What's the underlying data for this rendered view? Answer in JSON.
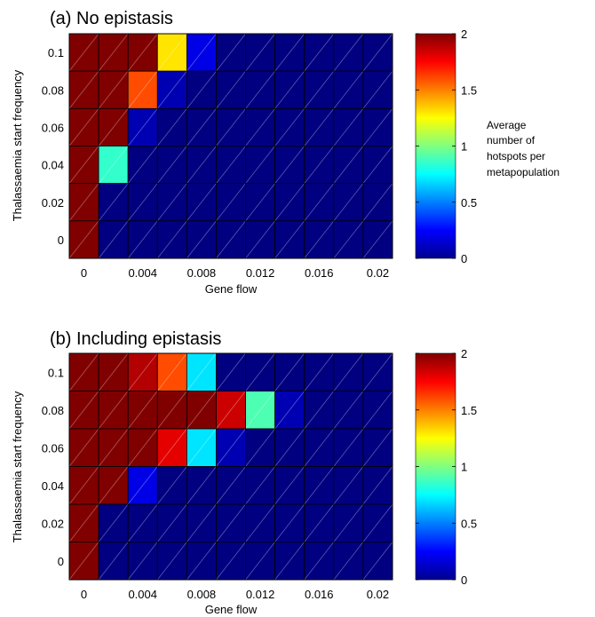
{
  "colorbar_label": [
    "Average",
    "number of",
    "hotspots per",
    "metapopulation"
  ],
  "chart_data": [
    {
      "type": "heatmap",
      "title": "(a) No epistasis",
      "xlabel": "Gene flow",
      "ylabel": "Thalassaemia start frequency",
      "x_ticks": [
        "0",
        "0.004",
        "0.008",
        "0.012",
        "0.016",
        "0.02"
      ],
      "y_ticks": [
        "0.1",
        "0.08",
        "0.06",
        "0.04",
        "0.02",
        "0"
      ],
      "rows_top_to_bottom": [
        0.1,
        0.08,
        0.06,
        0.04,
        0.02,
        0
      ],
      "columns": [
        0,
        0.002,
        0.004,
        0.006,
        0.008,
        0.01,
        0.012,
        0.014,
        0.016,
        0.018,
        0.02
      ],
      "values": [
        [
          2,
          2,
          2,
          1.3,
          0.2,
          0,
          0,
          0,
          0,
          0,
          0
        ],
        [
          2,
          2,
          1.6,
          0.1,
          0,
          0,
          0,
          0,
          0,
          0,
          0
        ],
        [
          2,
          2,
          0.1,
          0,
          0,
          0,
          0,
          0,
          0,
          0,
          0
        ],
        [
          2,
          0.85,
          0,
          0,
          0,
          0,
          0,
          0,
          0,
          0,
          0
        ],
        [
          2,
          0,
          0,
          0,
          0,
          0,
          0,
          0,
          0,
          0,
          0
        ],
        [
          2,
          0,
          0,
          0,
          0,
          0,
          0,
          0,
          0,
          0,
          0
        ]
      ],
      "colorbar_ticks": [
        "2",
        "1.5",
        "1",
        "0.5",
        "0"
      ],
      "clim": [
        0,
        2
      ],
      "colormap": "jet"
    },
    {
      "type": "heatmap",
      "title": "(b) Including epistasis",
      "xlabel": "Gene flow",
      "ylabel": "Thalassaemia start frequency",
      "x_ticks": [
        "0",
        "0.004",
        "0.008",
        "0.012",
        "0.016",
        "0.02"
      ],
      "y_ticks": [
        "0.1",
        "0.08",
        "0.06",
        "0.04",
        "0.02",
        "0"
      ],
      "rows_top_to_bottom": [
        0.1,
        0.08,
        0.06,
        0.04,
        0.02,
        0
      ],
      "columns": [
        0,
        0.002,
        0.004,
        0.006,
        0.008,
        0.01,
        0.012,
        0.014,
        0.016,
        0.018,
        0.02
      ],
      "values": [
        [
          2,
          2,
          1.9,
          1.6,
          0.7,
          0,
          0,
          0,
          0,
          0,
          0
        ],
        [
          2,
          2,
          2,
          2,
          2,
          1.85,
          0.9,
          0.1,
          0,
          0,
          0
        ],
        [
          2,
          2,
          2,
          1.8,
          0.7,
          0.1,
          0,
          0,
          0,
          0,
          0
        ],
        [
          2,
          2,
          0.2,
          0,
          0,
          0,
          0,
          0,
          0,
          0,
          0
        ],
        [
          2,
          0,
          0,
          0,
          0,
          0,
          0,
          0,
          0,
          0,
          0
        ],
        [
          2,
          0,
          0,
          0,
          0,
          0,
          0,
          0,
          0,
          0,
          0
        ]
      ],
      "colorbar_ticks": [
        "2",
        "1.5",
        "1",
        "0.5",
        "0"
      ],
      "clim": [
        0,
        2
      ],
      "colormap": "jet"
    }
  ]
}
